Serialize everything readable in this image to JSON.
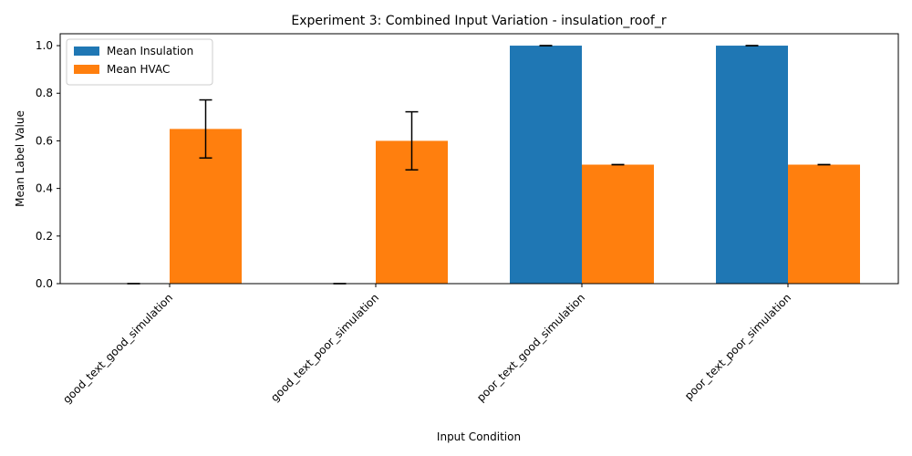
{
  "chart_data": {
    "type": "bar",
    "title": "Experiment 3: Combined Input Variation - insulation_roof_r",
    "xlabel": "Input Condition",
    "ylabel": "Mean Label Value",
    "categories": [
      "good_text_good_simulation",
      "good_text_poor_simulation",
      "poor_text_good_simulation",
      "poor_text_poor_simulation"
    ],
    "series": [
      {
        "name": "Mean Insulation",
        "color": "#1f77b4",
        "values": [
          0.0,
          0.0,
          1.0,
          1.0
        ],
        "errors": [
          0.0,
          0.0,
          0.0,
          0.0
        ]
      },
      {
        "name": "Mean HVAC",
        "color": "#ff7f0e",
        "values": [
          0.65,
          0.6,
          0.5,
          0.5
        ],
        "errors": [
          0.122,
          0.122,
          0.0,
          0.0
        ]
      }
    ],
    "ylim": [
      0,
      1.05
    ],
    "yticks": [
      0.0,
      0.2,
      0.4,
      0.6,
      0.8,
      1.0
    ],
    "legend_position": "top-left",
    "grid": false
  }
}
